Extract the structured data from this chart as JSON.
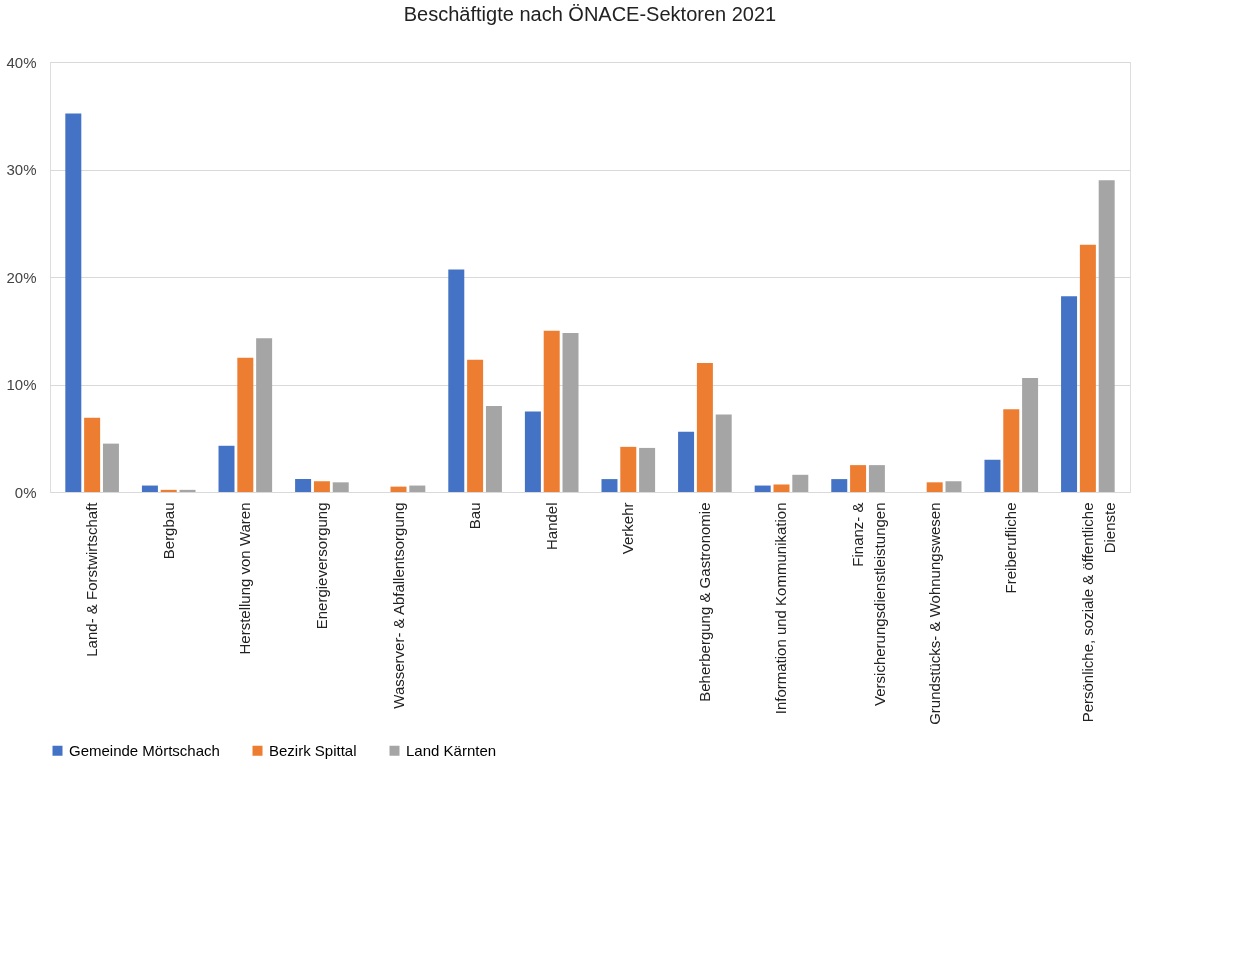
{
  "chart_data": {
    "type": "bar",
    "title": "Beschäftigte nach ÖNACE-Sektoren 2021",
    "categories": [
      "Land- & Forstwirtschaft",
      "Bergbau",
      "Herstellung von Waren",
      "Energieversorgung",
      "Wasserver- & Abfallentsorgung",
      "Bau",
      "Handel",
      "Verkehr",
      "Beherbergung & Gastronomie",
      "Information und Kommunikation",
      "Finanz- &\nVersicherungsdienstleistungen",
      "Grundstücks- & Wohnungswesen",
      "Freiberufliche",
      "Persönliche, soziale & öffentliche\nDienste"
    ],
    "series": [
      {
        "name": "Gemeinde Mörtschach",
        "color": "#4472c4",
        "values": [
          35.2,
          0.6,
          4.3,
          1.2,
          null,
          20.7,
          7.5,
          1.2,
          5.6,
          0.6,
          1.2,
          null,
          3.0,
          18.2
        ]
      },
      {
        "name": "Bezirk Spittal",
        "color": "#ed7d31",
        "values": [
          6.9,
          0.2,
          12.5,
          1.0,
          0.5,
          12.3,
          15.0,
          4.2,
          12.0,
          0.7,
          2.5,
          0.9,
          7.7,
          23.0
        ]
      },
      {
        "name": "Land Kärnten",
        "color": "#a5a5a5",
        "values": [
          4.5,
          0.2,
          14.3,
          0.9,
          0.6,
          8.0,
          14.8,
          4.1,
          7.2,
          1.6,
          2.5,
          1.0,
          10.6,
          29.0
        ]
      }
    ],
    "ylim": [
      0,
      40
    ],
    "yticks": [
      {
        "value": 0,
        "label": "0%"
      },
      {
        "value": 10,
        "label": "10%"
      },
      {
        "value": 20,
        "label": "20%"
      },
      {
        "value": 30,
        "label": "30%"
      },
      {
        "value": 40,
        "label": "40%"
      }
    ],
    "grid": "y",
    "legend": "bottom"
  }
}
